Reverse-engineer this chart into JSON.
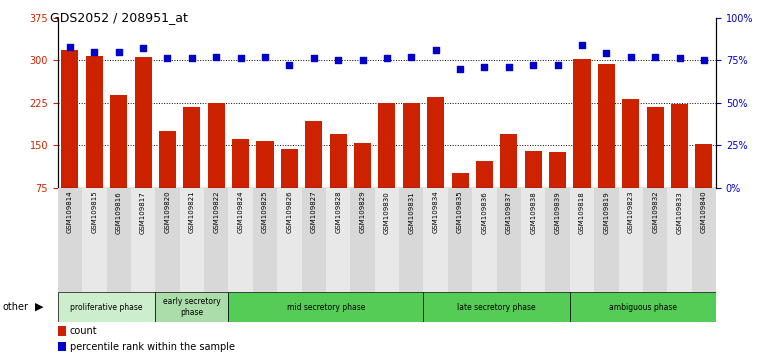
{
  "title": "GDS2052 / 208951_at",
  "samples": [
    "GSM109814",
    "GSM109815",
    "GSM109816",
    "GSM109817",
    "GSM109820",
    "GSM109821",
    "GSM109822",
    "GSM109824",
    "GSM109825",
    "GSM109826",
    "GSM109827",
    "GSM109828",
    "GSM109829",
    "GSM109830",
    "GSM109831",
    "GSM109834",
    "GSM109835",
    "GSM109836",
    "GSM109837",
    "GSM109838",
    "GSM109839",
    "GSM109818",
    "GSM109819",
    "GSM109823",
    "GSM109832",
    "GSM109833",
    "GSM109840"
  ],
  "counts": [
    318,
    308,
    238,
    306,
    175,
    218,
    225,
    160,
    158,
    143,
    193,
    170,
    153,
    225,
    225,
    235,
    100,
    122,
    170,
    140,
    138,
    302,
    293,
    232,
    218,
    222,
    152
  ],
  "percentile_ranks_pct": [
    83,
    80,
    80,
    82,
    76,
    76,
    77,
    76,
    77,
    72,
    76,
    75,
    75,
    76,
    77,
    81,
    70,
    71,
    71,
    72,
    72,
    84,
    79,
    77,
    77,
    76,
    75
  ],
  "phases": [
    {
      "label": "proliferative phase",
      "start": 0,
      "end": 4,
      "color": "#cceecc"
    },
    {
      "label": "early secretory\nphase",
      "start": 4,
      "end": 7,
      "color": "#aaddaa"
    },
    {
      "label": "mid secretory phase",
      "start": 7,
      "end": 15,
      "color": "#55cc55"
    },
    {
      "label": "late secretory phase",
      "start": 15,
      "end": 21,
      "color": "#55cc55"
    },
    {
      "label": "ambiguous phase",
      "start": 21,
      "end": 27,
      "color": "#55cc55"
    }
  ],
  "ylim_left": [
    75,
    375
  ],
  "yticks_left": [
    75,
    150,
    225,
    300,
    375
  ],
  "ylim_right": [
    0,
    100
  ],
  "yticks_right": [
    0,
    25,
    50,
    75,
    100
  ],
  "bar_color": "#cc2200",
  "scatter_color": "#0000cc",
  "tick_label_bg_odd": "#d8d8d8",
  "tick_label_bg_even": "#e8e8e8"
}
